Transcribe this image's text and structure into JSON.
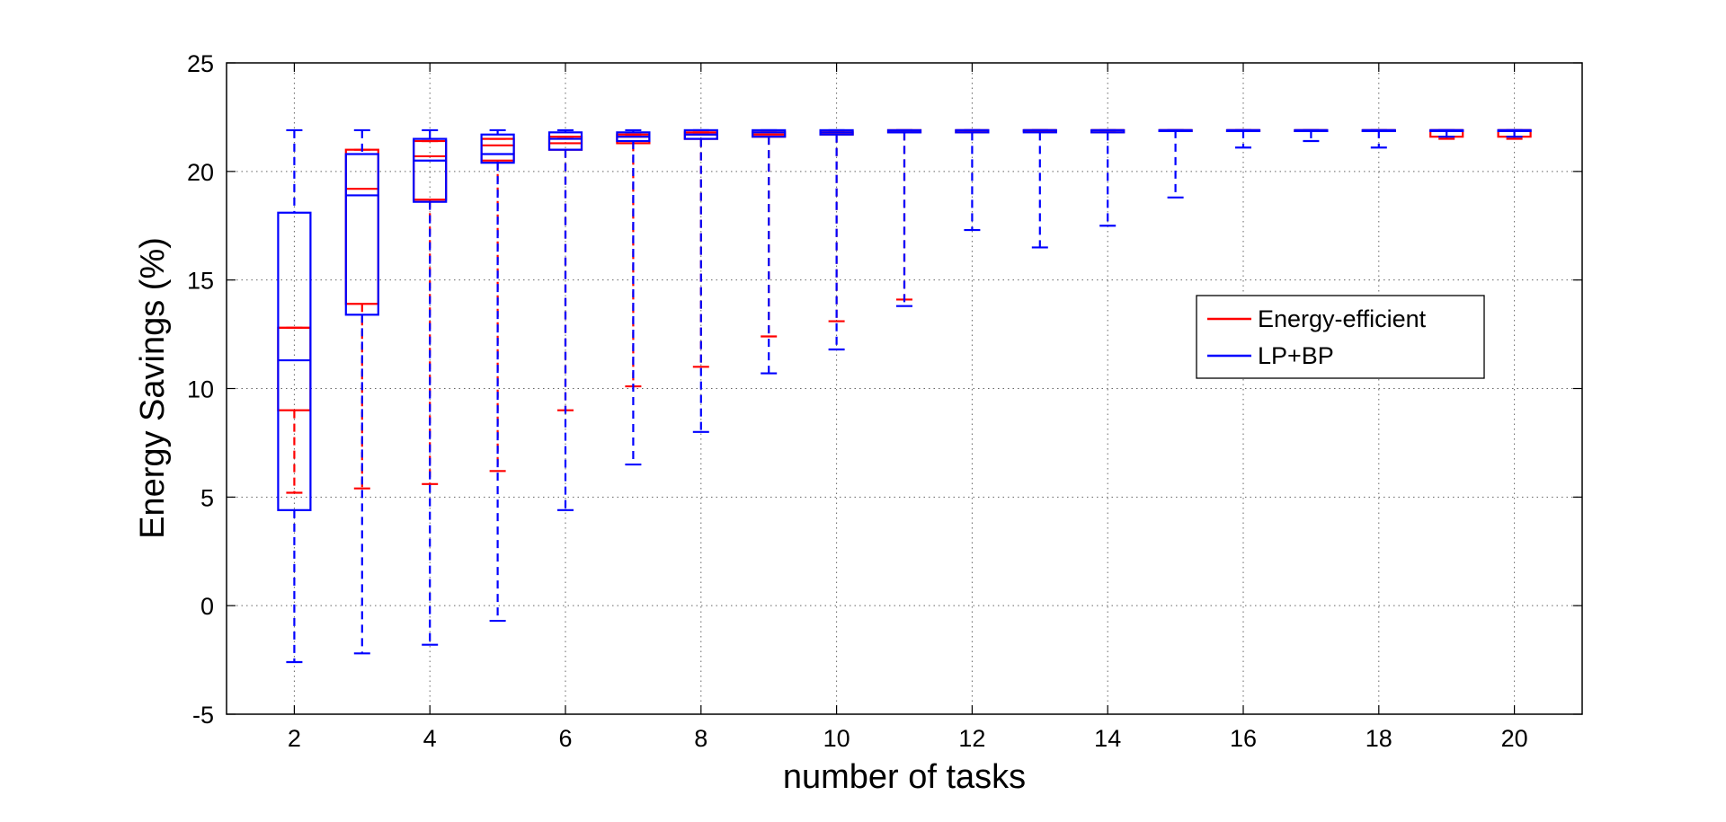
{
  "chart_data": {
    "type": "box",
    "title": "",
    "xlabel": "number of tasks",
    "ylabel": "Energy Savings (%)",
    "xlim": [
      1,
      21
    ],
    "ylim": [
      -5,
      25
    ],
    "xticks": [
      "2",
      "4",
      "6",
      "8",
      "10",
      "12",
      "14",
      "16",
      "18",
      "20"
    ],
    "yticks": [
      "-5",
      "0",
      "5",
      "10",
      "15",
      "20",
      "25"
    ],
    "grid": true,
    "legend_position": "right",
    "categories": [
      2,
      3,
      4,
      5,
      6,
      7,
      8,
      9,
      10,
      11,
      12,
      13,
      14,
      15,
      16,
      17,
      18,
      19,
      20
    ],
    "series": [
      {
        "name": "Energy-efficient",
        "color": "#ff0000",
        "boxes": [
          {
            "x": 2,
            "min": 5.2,
            "q1": 9.0,
            "median": 12.8,
            "q3": 12.8,
            "max": 12.8
          },
          {
            "x": 3,
            "min": 5.4,
            "q1": 13.9,
            "median": 19.2,
            "q3": 21.0,
            "max": 21.0
          },
          {
            "x": 4,
            "min": 5.6,
            "q1": 18.7,
            "median": 20.7,
            "q3": 21.4,
            "max": 21.4
          },
          {
            "x": 5,
            "min": 6.2,
            "q1": 20.5,
            "median": 21.2,
            "q3": 21.5,
            "max": 21.5
          },
          {
            "x": 6,
            "min": 9.0,
            "q1": 21.0,
            "median": 21.3,
            "q3": 21.6,
            "max": 21.6
          },
          {
            "x": 7,
            "min": 10.1,
            "q1": 21.3,
            "median": 21.6,
            "q3": 21.7,
            "max": 21.7
          },
          {
            "x": 8,
            "min": 11.0,
            "q1": 21.5,
            "median": 21.7,
            "q3": 21.8,
            "max": 21.8
          },
          {
            "x": 9,
            "min": 12.4,
            "q1": 21.6,
            "median": 21.7,
            "q3": 21.8,
            "max": 21.8
          },
          {
            "x": 10,
            "min": 13.1,
            "q1": 21.7,
            "median": 21.8,
            "q3": 21.8,
            "max": 21.8
          },
          {
            "x": 11,
            "min": 14.1,
            "q1": 21.8,
            "median": 21.8,
            "q3": 21.9,
            "max": 21.9
          },
          {
            "x": 12,
            "min": 21.8,
            "q1": 21.8,
            "median": 21.8,
            "q3": 21.9,
            "max": 21.9
          },
          {
            "x": 13,
            "min": 21.9,
            "q1": 21.9,
            "median": 21.9,
            "q3": 21.9,
            "max": 21.9
          },
          {
            "x": 14,
            "min": 21.8,
            "q1": 21.8,
            "median": 21.9,
            "q3": 21.9,
            "max": 21.9
          },
          {
            "x": 15,
            "min": 21.9,
            "q1": 21.9,
            "median": 21.9,
            "q3": 21.9,
            "max": 21.9
          },
          {
            "x": 16,
            "min": 21.9,
            "q1": 21.9,
            "median": 21.9,
            "q3": 21.9,
            "max": 21.9
          },
          {
            "x": 17,
            "min": 21.9,
            "q1": 21.9,
            "median": 21.9,
            "q3": 21.9,
            "max": 21.9
          },
          {
            "x": 18,
            "min": 21.9,
            "q1": 21.9,
            "median": 21.9,
            "q3": 21.9,
            "max": 21.9
          },
          {
            "x": 19,
            "min": 21.5,
            "q1": 21.6,
            "median": 21.9,
            "q3": 21.9,
            "max": 21.9
          },
          {
            "x": 20,
            "min": 21.5,
            "q1": 21.6,
            "median": 21.9,
            "q3": 21.9,
            "max": 21.9
          }
        ]
      },
      {
        "name": "LP+BP",
        "color": "#0000ff",
        "boxes": [
          {
            "x": 2,
            "min": -2.6,
            "q1": 4.4,
            "median": 11.3,
            "q3": 18.1,
            "max": 21.9
          },
          {
            "x": 3,
            "min": -2.2,
            "q1": 13.4,
            "median": 18.9,
            "q3": 20.8,
            "max": 21.9
          },
          {
            "x": 4,
            "min": -1.8,
            "q1": 18.6,
            "median": 20.5,
            "q3": 21.5,
            "max": 21.9
          },
          {
            "x": 5,
            "min": -0.7,
            "q1": 20.4,
            "median": 20.8,
            "q3": 21.7,
            "max": 21.9
          },
          {
            "x": 6,
            "min": 4.4,
            "q1": 21.0,
            "median": 21.5,
            "q3": 21.8,
            "max": 21.9
          },
          {
            "x": 7,
            "min": 6.5,
            "q1": 21.4,
            "median": 21.6,
            "q3": 21.8,
            "max": 21.9
          },
          {
            "x": 8,
            "min": 8.0,
            "q1": 21.5,
            "median": 21.7,
            "q3": 21.9,
            "max": 21.9
          },
          {
            "x": 9,
            "min": 10.7,
            "q1": 21.6,
            "median": 21.8,
            "q3": 21.9,
            "max": 21.9
          },
          {
            "x": 10,
            "min": 11.8,
            "q1": 21.7,
            "median": 21.8,
            "q3": 21.9,
            "max": 21.9
          },
          {
            "x": 11,
            "min": 13.8,
            "q1": 21.8,
            "median": 21.8,
            "q3": 21.9,
            "max": 21.9
          },
          {
            "x": 12,
            "min": 17.3,
            "q1": 21.8,
            "median": 21.9,
            "q3": 21.9,
            "max": 21.9
          },
          {
            "x": 13,
            "min": 16.5,
            "q1": 21.8,
            "median": 21.9,
            "q3": 21.9,
            "max": 21.9
          },
          {
            "x": 14,
            "min": 17.5,
            "q1": 21.8,
            "median": 21.9,
            "q3": 21.9,
            "max": 21.9
          },
          {
            "x": 15,
            "min": 18.8,
            "q1": 21.9,
            "median": 21.9,
            "q3": 21.9,
            "max": 21.9
          },
          {
            "x": 16,
            "min": 21.1,
            "q1": 21.9,
            "median": 21.9,
            "q3": 21.9,
            "max": 21.9
          },
          {
            "x": 17,
            "min": 21.4,
            "q1": 21.9,
            "median": 21.9,
            "q3": 21.9,
            "max": 21.9
          },
          {
            "x": 18,
            "min": 21.1,
            "q1": 21.9,
            "median": 21.9,
            "q3": 21.9,
            "max": 21.9
          },
          {
            "x": 19,
            "min": 21.6,
            "q1": 21.9,
            "median": 21.9,
            "q3": 21.9,
            "max": 21.9
          },
          {
            "x": 20,
            "min": 21.6,
            "q1": 21.9,
            "median": 21.9,
            "q3": 21.9,
            "max": 21.9
          }
        ]
      }
    ]
  }
}
